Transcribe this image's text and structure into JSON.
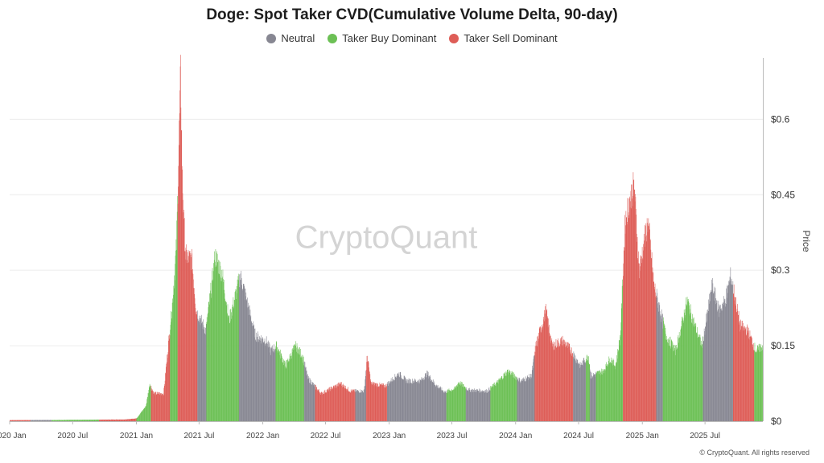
{
  "chart_data": {
    "type": "bar",
    "title": "Doge: Spot Taker CVD(Cumulative Volume Delta, 90-day)",
    "ylabel": "Price",
    "ylim": [
      0,
      0.69
    ],
    "yticks": [
      0,
      0.15,
      0.3,
      0.45,
      0.6
    ],
    "ytick_labels": [
      "$0",
      "$0.15",
      "$0.3",
      "$0.45",
      "$0.6"
    ],
    "xticks": [
      "2020-01-01",
      "2020-07-01",
      "2021-01-01",
      "2021-07-01",
      "2022-01-01",
      "2022-07-01",
      "2023-01-01",
      "2023-07-01",
      "2024-01-01",
      "2024-07-01",
      "2025-01-01",
      "2025-07-01"
    ],
    "xtick_labels": [
      "2020 Jan",
      "2020 Jul",
      "2021 Jan",
      "2021 Jul",
      "2022 Jan",
      "2022 Jul",
      "2023 Jan",
      "2023 Jul",
      "2024 Jan",
      "2024 Jul",
      "2025 Jan",
      "2025 Jul"
    ],
    "x_range": [
      "2020-01-01",
      "2025-12-15"
    ],
    "legend_position": "top-center",
    "grid": "horizontal",
    "watermark": "CryptoQuant",
    "copyright": "© CryptoQuant. All rights reserved",
    "series": [
      {
        "name": "Neutral",
        "color": "#878792"
      },
      {
        "name": "Taker Buy Dominant",
        "color": "#6cc055"
      },
      {
        "name": "Taker Sell Dominant",
        "color": "#de5d57"
      }
    ],
    "price_points": [
      [
        "2020-01-01",
        0.0021
      ],
      [
        "2020-06-01",
        0.0025
      ],
      [
        "2020-12-01",
        0.0035
      ],
      [
        "2021-01-01",
        0.0057
      ],
      [
        "2021-01-28",
        0.03
      ],
      [
        "2021-02-08",
        0.075
      ],
      [
        "2021-02-20",
        0.055
      ],
      [
        "2021-03-20",
        0.055
      ],
      [
        "2021-04-15",
        0.24
      ],
      [
        "2021-04-26",
        0.35
      ],
      [
        "2021-05-08",
        0.69
      ],
      [
        "2021-05-13",
        0.48
      ],
      [
        "2021-05-22",
        0.33
      ],
      [
        "2021-06-10",
        0.32
      ],
      [
        "2021-06-22",
        0.22
      ],
      [
        "2021-07-20",
        0.18
      ],
      [
        "2021-08-16",
        0.33
      ],
      [
        "2021-09-06",
        0.29
      ],
      [
        "2021-09-25",
        0.2
      ],
      [
        "2021-10-28",
        0.29
      ],
      [
        "2021-11-15",
        0.24
      ],
      [
        "2021-12-10",
        0.17
      ],
      [
        "2022-01-10",
        0.16
      ],
      [
        "2022-01-24",
        0.14
      ],
      [
        "2022-02-10",
        0.15
      ],
      [
        "2022-03-07",
        0.11
      ],
      [
        "2022-04-05",
        0.15
      ],
      [
        "2022-04-25",
        0.13
      ],
      [
        "2022-05-11",
        0.085
      ],
      [
        "2022-06-18",
        0.055
      ],
      [
        "2022-08-14",
        0.075
      ],
      [
        "2022-09-10",
        0.06
      ],
      [
        "2022-10-20",
        0.06
      ],
      [
        "2022-10-29",
        0.13
      ],
      [
        "2022-11-09",
        0.075
      ],
      [
        "2022-12-20",
        0.07
      ],
      [
        "2023-01-28",
        0.095
      ],
      [
        "2023-02-20",
        0.08
      ],
      [
        "2023-04-01",
        0.08
      ],
      [
        "2023-04-20",
        0.095
      ],
      [
        "2023-05-15",
        0.072
      ],
      [
        "2023-06-10",
        0.058
      ],
      [
        "2023-07-10",
        0.065
      ],
      [
        "2023-07-20",
        0.078
      ],
      [
        "2023-08-18",
        0.062
      ],
      [
        "2023-10-10",
        0.06
      ],
      [
        "2023-11-10",
        0.078
      ],
      [
        "2023-12-10",
        0.1
      ],
      [
        "2024-01-15",
        0.08
      ],
      [
        "2024-02-15",
        0.09
      ],
      [
        "2024-02-28",
        0.15
      ],
      [
        "2024-03-28",
        0.22
      ],
      [
        "2024-04-15",
        0.15
      ],
      [
        "2024-05-15",
        0.16
      ],
      [
        "2024-06-10",
        0.14
      ],
      [
        "2024-07-05",
        0.11
      ],
      [
        "2024-07-29",
        0.13
      ],
      [
        "2024-08-05",
        0.09
      ],
      [
        "2024-09-10",
        0.1
      ],
      [
        "2024-09-29",
        0.125
      ],
      [
        "2024-10-15",
        0.11
      ],
      [
        "2024-10-29",
        0.17
      ],
      [
        "2024-11-12",
        0.4
      ],
      [
        "2024-11-25",
        0.44
      ],
      [
        "2024-12-08",
        0.47
      ],
      [
        "2024-12-22",
        0.3
      ],
      [
        "2025-01-17",
        0.4
      ],
      [
        "2025-02-03",
        0.27
      ],
      [
        "2025-02-28",
        0.2
      ],
      [
        "2025-03-10",
        0.17
      ],
      [
        "2025-04-07",
        0.14
      ],
      [
        "2025-05-10",
        0.24
      ],
      [
        "2025-06-01",
        0.19
      ],
      [
        "2025-06-22",
        0.15
      ],
      [
        "2025-07-21",
        0.27
      ],
      [
        "2025-08-10",
        0.22
      ],
      [
        "2025-08-28",
        0.24
      ],
      [
        "2025-09-13",
        0.29
      ],
      [
        "2025-10-10",
        0.19
      ],
      [
        "2025-11-01",
        0.18
      ],
      [
        "2025-11-25",
        0.14
      ],
      [
        "2025-12-15",
        0.15
      ]
    ],
    "regimes": [
      [
        "2020-01-01",
        "Taker Sell Dominant"
      ],
      [
        "2020-03-01",
        "Neutral"
      ],
      [
        "2020-05-01",
        "Taker Buy Dominant"
      ],
      [
        "2020-09-15",
        "Taker Sell Dominant"
      ],
      [
        "2021-01-01",
        "Taker Buy Dominant"
      ],
      [
        "2021-02-12",
        "Taker Sell Dominant"
      ],
      [
        "2021-04-08",
        "Taker Buy Dominant"
      ],
      [
        "2021-04-30",
        "Taker Sell Dominant"
      ],
      [
        "2021-06-26",
        "Neutral"
      ],
      [
        "2021-07-22",
        "Taker Buy Dominant"
      ],
      [
        "2021-10-24",
        "Neutral"
      ],
      [
        "2022-02-07",
        "Taker Buy Dominant"
      ],
      [
        "2022-04-30",
        "Neutral"
      ],
      [
        "2022-06-01",
        "Taker Sell Dominant"
      ],
      [
        "2022-09-25",
        "Neutral"
      ],
      [
        "2022-10-26",
        "Taker Sell Dominant"
      ],
      [
        "2022-12-26",
        "Neutral"
      ],
      [
        "2023-06-15",
        "Taker Buy Dominant"
      ],
      [
        "2023-08-10",
        "Neutral"
      ],
      [
        "2023-10-20",
        "Taker Buy Dominant"
      ],
      [
        "2024-01-05",
        "Neutral"
      ],
      [
        "2024-02-25",
        "Taker Sell Dominant"
      ],
      [
        "2024-06-15",
        "Neutral"
      ],
      [
        "2024-07-22",
        "Taker Buy Dominant"
      ],
      [
        "2024-08-02",
        "Neutral"
      ],
      [
        "2024-08-20",
        "Taker Buy Dominant"
      ],
      [
        "2024-10-25",
        "Taker Buy Dominant"
      ],
      [
        "2024-11-06",
        "Taker Sell Dominant"
      ],
      [
        "2025-02-10",
        "Neutral"
      ],
      [
        "2025-03-01",
        "Taker Buy Dominant"
      ],
      [
        "2025-06-25",
        "Neutral"
      ],
      [
        "2025-09-20",
        "Taker Sell Dominant"
      ],
      [
        "2025-11-20",
        "Taker Buy Dominant"
      ]
    ]
  }
}
